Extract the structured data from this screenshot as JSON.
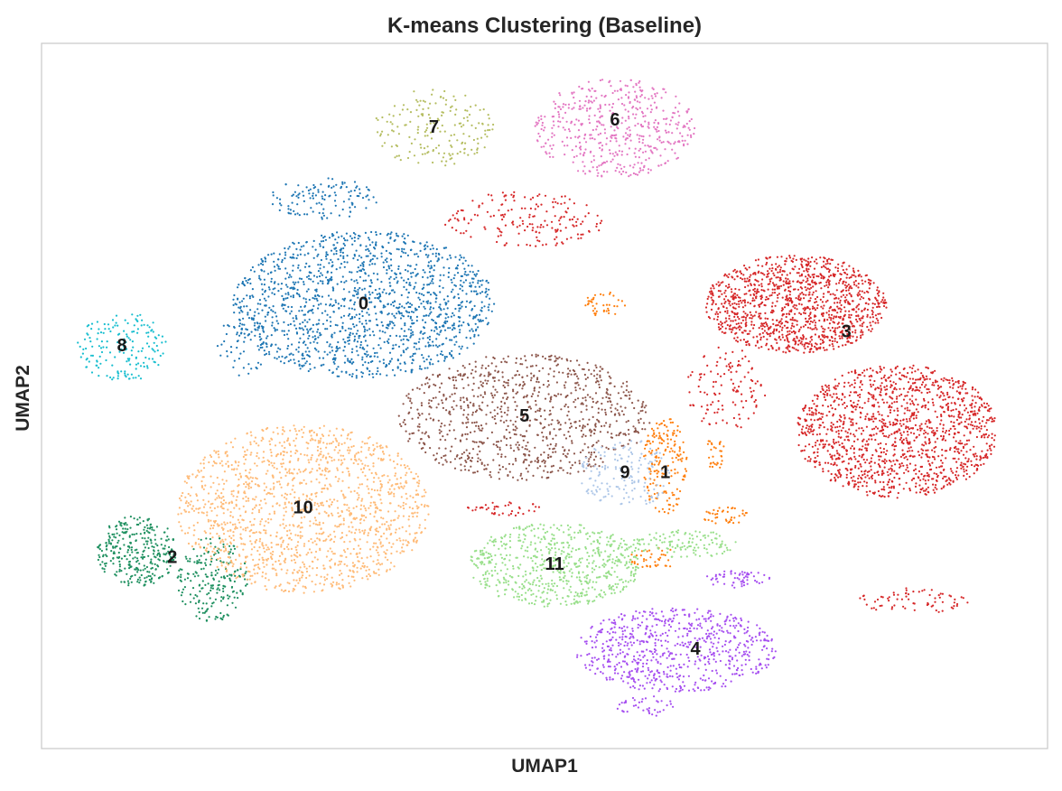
{
  "chart_data": {
    "type": "scatter",
    "title": "K-means Clustering (Baseline)",
    "xlabel": "UMAP1",
    "ylabel": "UMAP2",
    "xlim": [
      0,
      100
    ],
    "ylim": [
      0,
      100
    ],
    "grid": false,
    "legend": "none",
    "ticks": "none",
    "point_size": 1.1,
    "clusters": [
      {
        "label": "0",
        "color": "#1f77b4",
        "centroid": [
          32,
          63
        ],
        "blobs": [
          [
            32,
            63,
            13,
            10.5,
            1500
          ],
          [
            28,
            78,
            5.5,
            3.0,
            120
          ],
          [
            20,
            57,
            2.5,
            5,
            60
          ]
        ]
      },
      {
        "label": "1",
        "color": "#ff7f0e",
        "centroid": [
          62,
          39
        ],
        "blobs": [
          [
            62,
            40,
            2.2,
            7,
            180
          ],
          [
            68,
            33,
            2.5,
            1.2,
            40
          ],
          [
            67,
            42,
            1.0,
            2.5,
            30
          ],
          [
            56,
            63,
            2.0,
            2.0,
            40
          ],
          [
            61,
            27,
            2.5,
            1.5,
            40
          ]
        ]
      },
      {
        "label": "2",
        "color": "#1f9060",
        "centroid": [
          13,
          27
        ],
        "blobs": [
          [
            9.5,
            28,
            4,
            5,
            320
          ],
          [
            17,
            24,
            3.5,
            6,
            220
          ]
        ]
      },
      {
        "label": "3",
        "color": "#d62728",
        "centroid": [
          80,
          59
        ],
        "blobs": [
          [
            75,
            63,
            9,
            7,
            1200
          ],
          [
            85,
            45,
            10,
            9.5,
            1400
          ],
          [
            48,
            75,
            8,
            4,
            180
          ],
          [
            68,
            51,
            4,
            6,
            120
          ],
          [
            87,
            21,
            6,
            1.8,
            70
          ],
          [
            46,
            34,
            4,
            1.0,
            40
          ]
        ]
      },
      {
        "label": "4",
        "color": "#a64ff0",
        "centroid": [
          65,
          14
        ],
        "blobs": [
          [
            63,
            14,
            10,
            6,
            700
          ],
          [
            69,
            24,
            3.5,
            1.2,
            60
          ],
          [
            60,
            6,
            3,
            1.5,
            40
          ]
        ]
      },
      {
        "label": "5",
        "color": "#8c564b",
        "centroid": [
          48,
          47
        ],
        "blobs": [
          [
            48,
            47,
            12.5,
            9,
            950
          ]
        ]
      },
      {
        "label": "6",
        "color": "#e377c2",
        "centroid": [
          57,
          89
        ],
        "blobs": [
          [
            57,
            88,
            8,
            7,
            500
          ]
        ]
      },
      {
        "label": "7",
        "color": "#b5bd61",
        "centroid": [
          39,
          88
        ],
        "blobs": [
          [
            39,
            88,
            6,
            5.5,
            180
          ]
        ]
      },
      {
        "label": "8",
        "color": "#17becf",
        "centroid": [
          8,
          57
        ],
        "blobs": [
          [
            8,
            57,
            4.5,
            5,
            170
          ]
        ]
      },
      {
        "label": "9",
        "color": "#aec7e8",
        "centroid": [
          58,
          39
        ],
        "blobs": [
          [
            58,
            39,
            4.5,
            5,
            160
          ]
        ]
      },
      {
        "label": "10",
        "color": "#ffbb78",
        "centroid": [
          26,
          34
        ],
        "blobs": [
          [
            26,
            34,
            12.5,
            12,
            1500
          ]
        ]
      },
      {
        "label": "11",
        "color": "#98df8a",
        "centroid": [
          51,
          26
        ],
        "blobs": [
          [
            51,
            26,
            8.5,
            6,
            650
          ],
          [
            64,
            29,
            5.5,
            2,
            120
          ]
        ]
      }
    ]
  }
}
